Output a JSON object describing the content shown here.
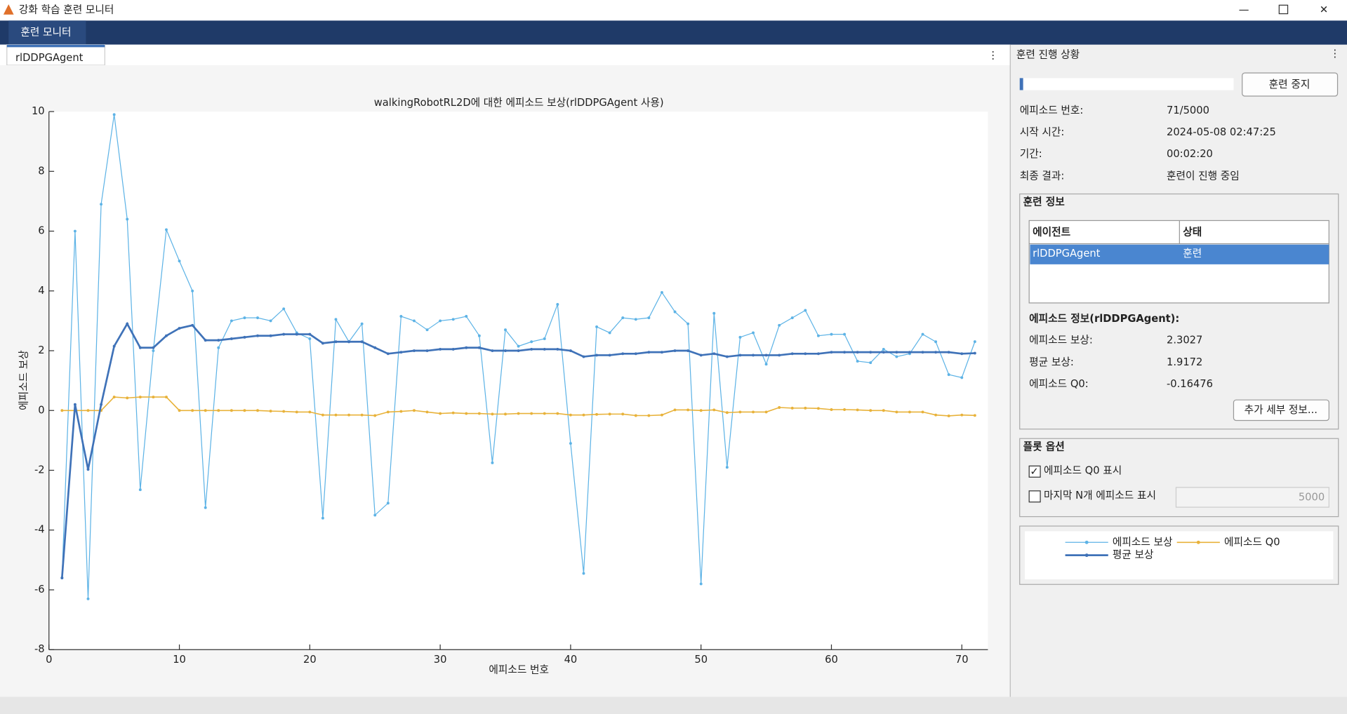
{
  "window_title": "강화 학습 훈련 모니터",
  "menu": "훈련 모니터",
  "tab": "rlDDPGAgent",
  "chart_data": {
    "type": "line",
    "title": "walkingRobotRL2D에 대한 에피소드 보상(rlDDPGAgent 사용)",
    "x_label": "에피소드 번호",
    "y_label": "에피소드 보상",
    "x": [
      1,
      2,
      3,
      4,
      5,
      6,
      7,
      8,
      9,
      10,
      11,
      12,
      13,
      14,
      15,
      16,
      17,
      18,
      19,
      20,
      21,
      22,
      23,
      24,
      25,
      26,
      27,
      28,
      29,
      30,
      31,
      32,
      33,
      34,
      35,
      36,
      37,
      38,
      39,
      40,
      41,
      42,
      43,
      44,
      45,
      46,
      47,
      48,
      49,
      50,
      51,
      52,
      53,
      54,
      55,
      56,
      57,
      58,
      59,
      60,
      61,
      62,
      63,
      64,
      65,
      66,
      67,
      68,
      69,
      70,
      71
    ],
    "xlim": [
      0,
      72
    ],
    "xticks": [
      0,
      10,
      20,
      30,
      40,
      50,
      60,
      70
    ],
    "ylim": [
      -8,
      10
    ],
    "yticks": [
      -8,
      -6,
      -4,
      -2,
      0,
      2,
      4,
      6,
      8,
      10
    ],
    "series": [
      {
        "name": "에피소드 보상",
        "color": "#5db3e6",
        "width": 1,
        "values": [
          -5.6,
          6.0,
          -6.3,
          6.9,
          9.9,
          6.4,
          -2.65,
          2.0,
          6.05,
          5.0,
          4.0,
          -3.25,
          2.1,
          3.0,
          3.1,
          3.1,
          3.0,
          3.4,
          2.6,
          2.4,
          -3.6,
          3.05,
          2.3,
          2.9,
          -3.5,
          -3.1,
          3.15,
          3.0,
          2.7,
          3.0,
          3.05,
          3.15,
          2.5,
          -1.75,
          2.7,
          2.15,
          2.3,
          2.4,
          3.55,
          -1.1,
          -5.45,
          2.8,
          2.6,
          3.1,
          3.05,
          3.1,
          3.95,
          3.3,
          2.9,
          -5.8,
          3.25,
          -1.9,
          2.45,
          2.6,
          1.55,
          2.85,
          3.1,
          3.35,
          2.5,
          2.55,
          2.55,
          1.65,
          1.6,
          2.05,
          1.8,
          1.9,
          2.55,
          2.3,
          1.2,
          1.1,
          2.3027
        ]
      },
      {
        "name": "에피소드 Q0",
        "color": "#e8b23a",
        "width": 1.3,
        "values": [
          0,
          0,
          0,
          0,
          0.45,
          0.42,
          0.45,
          0.45,
          0.45,
          0,
          0,
          0,
          0,
          0,
          0,
          0,
          -0.02,
          -0.03,
          -0.05,
          -0.05,
          -0.15,
          -0.15,
          -0.15,
          -0.15,
          -0.17,
          -0.05,
          -0.03,
          0,
          -0.05,
          -0.1,
          -0.08,
          -0.1,
          -0.1,
          -0.12,
          -0.12,
          -0.1,
          -0.1,
          -0.1,
          -0.1,
          -0.15,
          -0.15,
          -0.13,
          -0.12,
          -0.12,
          -0.17,
          -0.17,
          -0.15,
          0.02,
          0.02,
          0,
          0.02,
          -0.07,
          -0.05,
          -0.05,
          -0.05,
          0.1,
          0.08,
          0.08,
          0.07,
          0.03,
          0.03,
          0.02,
          0,
          0,
          -0.05,
          -0.05,
          -0.05,
          -0.15,
          -0.18,
          -0.15,
          -0.16476
        ]
      },
      {
        "name": "평균 보상",
        "color": "#3f72b8",
        "width": 2.2,
        "values": [
          -5.6,
          0.2,
          -1.97,
          0.2,
          2.15,
          2.9,
          2.1,
          2.1,
          2.5,
          2.75,
          2.85,
          2.35,
          2.35,
          2.4,
          2.45,
          2.5,
          2.5,
          2.55,
          2.55,
          2.55,
          2.25,
          2.3,
          2.3,
          2.3,
          2.1,
          1.9,
          1.95,
          2.0,
          2.0,
          2.05,
          2.05,
          2.1,
          2.1,
          2.0,
          2.0,
          2.0,
          2.05,
          2.05,
          2.05,
          2.0,
          1.8,
          1.85,
          1.85,
          1.9,
          1.9,
          1.95,
          1.95,
          2.0,
          2.0,
          1.85,
          1.9,
          1.8,
          1.85,
          1.85,
          1.85,
          1.85,
          1.9,
          1.9,
          1.9,
          1.95,
          1.95,
          1.95,
          1.95,
          1.95,
          1.95,
          1.95,
          1.95,
          1.95,
          1.95,
          1.9,
          1.9172
        ]
      }
    ]
  },
  "panel": {
    "title": "훈련 진행 상황",
    "stop_button": "훈련 중지",
    "status": [
      [
        "에피소드 번호:",
        "71/5000"
      ],
      [
        "시작 시간:",
        "2024-05-08 02:47:25"
      ],
      [
        "기간:",
        "00:02:20"
      ],
      [
        "최종 결과:",
        "훈련이 진행 중임"
      ]
    ],
    "training_info": {
      "title": "훈련 정보",
      "headers": [
        "에이전트",
        "상태"
      ],
      "row": [
        "rlDDPGAgent",
        "훈련"
      ],
      "episode_title": "에피소드 정보(rlDDPGAgent):",
      "episode": [
        [
          "에피소드 보상:",
          "2.3027"
        ],
        [
          "평균 보상:",
          "1.9172"
        ],
        [
          "에피소드 Q0:",
          "-0.16476"
        ]
      ],
      "details_button": "추가 세부 정보..."
    },
    "plot_options": {
      "title": "플롯 옵션",
      "show_q0": "에피소드 Q0 표시",
      "show_q0_checked": true,
      "last_n": "마지막 N개 에피소드 표시",
      "last_n_checked": false,
      "n_value": "5000"
    }
  }
}
